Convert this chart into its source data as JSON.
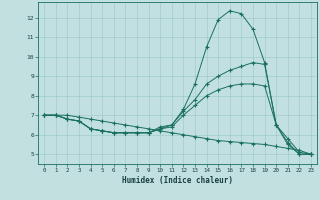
{
  "xlabel": "Humidex (Indice chaleur)",
  "background_color": "#c2e0e0",
  "grid_color": "#a0cccc",
  "line_color": "#1a7060",
  "xlim": [
    -0.5,
    23.5
  ],
  "ylim": [
    4.5,
    12.8
  ],
  "yticks": [
    5,
    6,
    7,
    8,
    9,
    10,
    11,
    12
  ],
  "xticks": [
    0,
    1,
    2,
    3,
    4,
    5,
    6,
    7,
    8,
    9,
    10,
    11,
    12,
    13,
    14,
    15,
    16,
    17,
    18,
    19,
    20,
    21,
    22,
    23
  ],
  "line1_y": [
    7.0,
    7.0,
    6.8,
    6.7,
    6.3,
    6.2,
    6.1,
    6.1,
    6.1,
    6.1,
    6.4,
    6.5,
    7.3,
    8.6,
    10.5,
    11.9,
    12.35,
    12.2,
    11.4,
    9.7,
    6.5,
    5.8,
    5.1,
    5.0
  ],
  "line2_y": [
    7.0,
    7.0,
    6.8,
    6.7,
    6.3,
    6.2,
    6.1,
    6.1,
    6.1,
    6.1,
    6.3,
    6.5,
    7.2,
    7.8,
    8.6,
    9.0,
    9.3,
    9.5,
    9.7,
    9.6,
    6.5,
    5.6,
    5.0,
    5.0
  ],
  "line3_y": [
    7.0,
    7.0,
    6.8,
    6.7,
    6.3,
    6.2,
    6.1,
    6.1,
    6.1,
    6.1,
    6.3,
    6.4,
    7.0,
    7.5,
    8.0,
    8.3,
    8.5,
    8.6,
    8.6,
    8.5,
    6.5,
    5.5,
    5.0,
    5.0
  ],
  "line4_y": [
    7.0,
    7.0,
    7.0,
    6.9,
    6.8,
    6.7,
    6.6,
    6.5,
    6.4,
    6.3,
    6.2,
    6.1,
    6.0,
    5.9,
    5.8,
    5.7,
    5.65,
    5.6,
    5.55,
    5.5,
    5.4,
    5.3,
    5.2,
    5.0
  ]
}
